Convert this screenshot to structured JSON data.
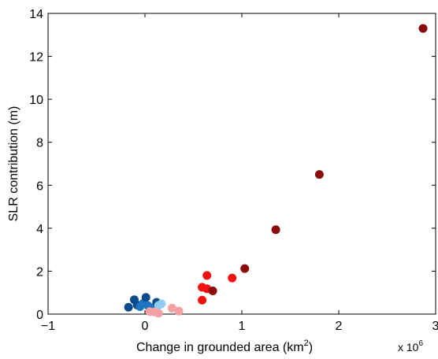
{
  "chart_data": {
    "type": "scatter",
    "xlabel_main": "Change in grounded area (km",
    "xlabel_sup": "2",
    "xlabel_end": ")",
    "ylabel": "SLR contribution (m)",
    "x_multiplier_base": "x 10",
    "x_multiplier_exp": "6",
    "xlim": [
      -1,
      3
    ],
    "ylim": [
      0,
      14
    ],
    "xticks": [
      -1,
      0,
      1,
      2,
      3
    ],
    "xtick_labels": [
      "−1",
      "0",
      "1",
      "2",
      "3"
    ],
    "yticks": [
      0,
      2,
      4,
      6,
      8,
      10,
      12,
      14
    ],
    "ytick_labels": [
      "0",
      "2",
      "4",
      "6",
      "8",
      "10",
      "12",
      "14"
    ],
    "x_unit": "millions of km^2",
    "grid": false,
    "colors": {
      "dark_blue": "#0b4a8a",
      "mid_blue": "#1e74c0",
      "light_blue": "#8fcdf2",
      "dark_red": "#8b0a0a",
      "red": "#f01010",
      "pink": "#f5a0a0"
    },
    "points": [
      {
        "x": -0.17,
        "y": 0.32,
        "color": "dark_blue"
      },
      {
        "x": -0.11,
        "y": 0.67,
        "color": "dark_blue"
      },
      {
        "x": -0.08,
        "y": 0.42,
        "color": "dark_blue"
      },
      {
        "x": -0.05,
        "y": 0.35,
        "color": "mid_blue"
      },
      {
        "x": -0.02,
        "y": 0.5,
        "color": "mid_blue"
      },
      {
        "x": 0.01,
        "y": 0.78,
        "color": "dark_blue"
      },
      {
        "x": 0.03,
        "y": 0.4,
        "color": "mid_blue"
      },
      {
        "x": 0.06,
        "y": 0.3,
        "color": "mid_blue"
      },
      {
        "x": 0.12,
        "y": 0.55,
        "color": "dark_blue"
      },
      {
        "x": 0.14,
        "y": 0.4,
        "color": "light_blue"
      },
      {
        "x": 0.17,
        "y": 0.48,
        "color": "light_blue"
      },
      {
        "x": 0.05,
        "y": 0.12,
        "color": "pink"
      },
      {
        "x": 0.1,
        "y": 0.1,
        "color": "pink"
      },
      {
        "x": 0.14,
        "y": 0.04,
        "color": "pink"
      },
      {
        "x": 0.28,
        "y": 0.28,
        "color": "pink"
      },
      {
        "x": 0.35,
        "y": 0.14,
        "color": "pink"
      },
      {
        "x": 0.59,
        "y": 1.25,
        "color": "red"
      },
      {
        "x": 0.59,
        "y": 0.65,
        "color": "red"
      },
      {
        "x": 0.64,
        "y": 1.8,
        "color": "red"
      },
      {
        "x": 0.64,
        "y": 1.18,
        "color": "red"
      },
      {
        "x": 0.7,
        "y": 1.08,
        "color": "dark_red"
      },
      {
        "x": 0.9,
        "y": 1.68,
        "color": "red"
      },
      {
        "x": 1.03,
        "y": 2.12,
        "color": "dark_red"
      },
      {
        "x": 1.35,
        "y": 3.93,
        "color": "dark_red"
      },
      {
        "x": 1.8,
        "y": 6.5,
        "color": "dark_red"
      },
      {
        "x": 2.87,
        "y": 13.3,
        "color": "dark_red"
      }
    ]
  }
}
